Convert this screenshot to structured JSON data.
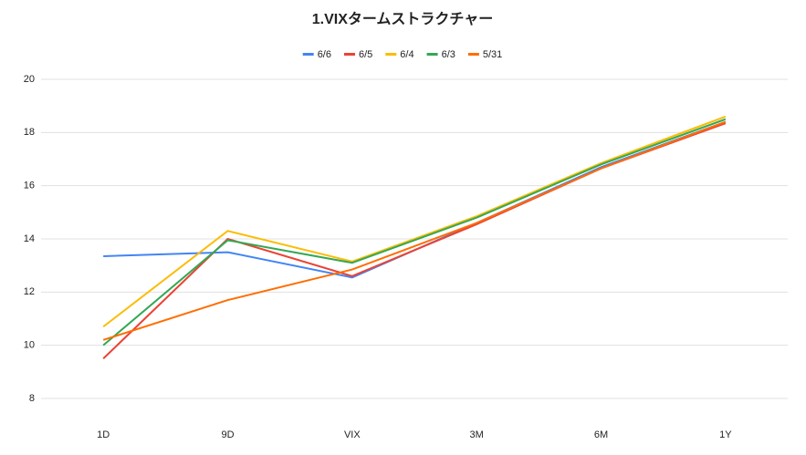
{
  "chart_data": {
    "type": "line",
    "title": "1.VIXタームストラクチャー",
    "categories": [
      "1D",
      "9D",
      "VIX",
      "3M",
      "6M",
      "1Y"
    ],
    "series": [
      {
        "name": "6/6",
        "color": "#4285f4",
        "values": [
          13.35,
          13.5,
          12.55,
          14.6,
          16.7,
          18.4
        ]
      },
      {
        "name": "6/5",
        "color": "#ea4335",
        "values": [
          9.5,
          14.0,
          12.6,
          14.55,
          16.65,
          18.35
        ]
      },
      {
        "name": "6/4",
        "color": "#fbbc04",
        "values": [
          10.7,
          14.3,
          13.15,
          14.85,
          16.85,
          18.6
        ]
      },
      {
        "name": "6/3",
        "color": "#34a853",
        "values": [
          10.0,
          13.95,
          13.1,
          14.8,
          16.8,
          18.5
        ]
      },
      {
        "name": "5/31",
        "color": "#ff6d01",
        "values": [
          10.2,
          11.7,
          12.85,
          14.6,
          16.65,
          18.4
        ]
      }
    ],
    "ylim": [
      8,
      20
    ],
    "yticks": [
      8,
      10,
      12,
      14,
      16,
      18,
      20
    ],
    "grid": true
  }
}
